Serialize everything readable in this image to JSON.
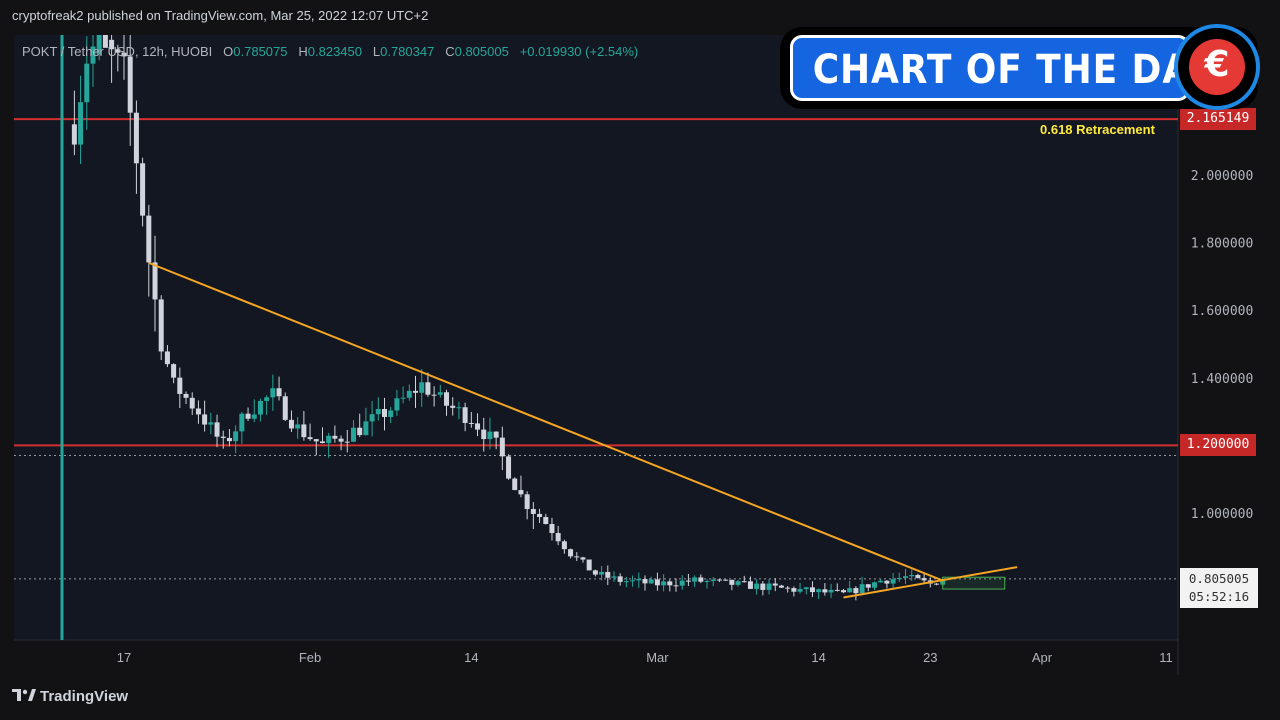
{
  "header": {
    "published": "cryptofreak2 published on TradingView.com, Mar 25, 2022 12:07 UTC+2"
  },
  "symbol": {
    "name": "POKT / Tether USD, 12h, HUOBI",
    "o_label": "O",
    "o": "0.785075",
    "h_label": "H",
    "h": "0.823450",
    "l_label": "L",
    "l": "0.780347",
    "c_label": "C",
    "c": "0.805005",
    "change": "+0.019930 (+2.54%)"
  },
  "banner": {
    "title": "CHART OF THE DAY",
    "logo_glyph": "€"
  },
  "annotations": {
    "retracement_label": "0.618 Retracement",
    "level_1": "2.165149",
    "level_2": "1.200000",
    "last_price": "0.805005",
    "countdown": "05:52:16"
  },
  "footer": {
    "brand": "TradingView"
  },
  "colors": {
    "up": "#26a69a",
    "down": "#d1d4dc",
    "level_line": "#d32f2f",
    "trendline": "#f5a623",
    "box": "#4caf50",
    "accent_banner": "#1565e0"
  },
  "chart_data": {
    "type": "candlestick",
    "symbol": "POKT / Tether USD",
    "interval": "12h",
    "exchange": "HUOBI",
    "y_ticks": [
      1.0,
      1.2,
      1.4,
      1.6,
      1.8,
      2.0
    ],
    "y_tick_labels": [
      "1.000000",
      "1.200000",
      "1.400000",
      "1.600000",
      "1.800000",
      "2.000000"
    ],
    "x_tick_labels": [
      "17",
      "Feb",
      "14",
      "Mar",
      "14",
      "23",
      "Apr",
      "11"
    ],
    "x_tick_dates": [
      "2022-01-17",
      "2022-02-01",
      "2022-02-14",
      "2022-03-01",
      "2022-03-14",
      "2022-03-23",
      "2022-04-01",
      "2022-04-11"
    ],
    "ylim": [
      0.7,
      2.35
    ],
    "horizontal_levels": [
      {
        "value": 2.165149,
        "label": "0.618 Retracement"
      },
      {
        "value": 1.2
      }
    ],
    "dotted_levels": [
      1.17,
      0.805005
    ],
    "trendlines": [
      {
        "from": [
          "2022-01-19",
          1.74
        ],
        "to": [
          "2022-03-24",
          0.8
        ]
      },
      {
        "from": [
          "2022-03-16",
          0.75
        ],
        "to": [
          "2022-03-30",
          0.84
        ]
      }
    ],
    "consolidation_box": {
      "x": [
        "2022-03-24",
        "2022-03-29"
      ],
      "y": [
        0.775,
        0.81
      ]
    },
    "approx_closes": [
      [
        "2022-01-13",
        2.15
      ],
      [
        "2022-01-14",
        2.35
      ],
      [
        "2022-01-15",
        2.4
      ],
      [
        "2022-01-16",
        2.35
      ],
      [
        "2022-01-17",
        2.3
      ],
      [
        "2022-01-18",
        2.05
      ],
      [
        "2022-01-19",
        1.75
      ],
      [
        "2022-01-20",
        1.5
      ],
      [
        "2022-01-21",
        1.38
      ],
      [
        "2022-01-23",
        1.3
      ],
      [
        "2022-01-25",
        1.2
      ],
      [
        "2022-01-27",
        1.3
      ],
      [
        "2022-01-29",
        1.35
      ],
      [
        "2022-01-31",
        1.25
      ],
      [
        "2022-02-02",
        1.2
      ],
      [
        "2022-02-05",
        1.25
      ],
      [
        "2022-02-08",
        1.32
      ],
      [
        "2022-02-10",
        1.38
      ],
      [
        "2022-02-12",
        1.32
      ],
      [
        "2022-02-14",
        1.28
      ],
      [
        "2022-02-16",
        1.2
      ],
      [
        "2022-02-18",
        1.05
      ],
      [
        "2022-02-20",
        0.97
      ],
      [
        "2022-02-22",
        0.88
      ],
      [
        "2022-02-24",
        0.82
      ],
      [
        "2022-02-26",
        0.8
      ],
      [
        "2022-03-01",
        0.79
      ],
      [
        "2022-03-04",
        0.8
      ],
      [
        "2022-03-07",
        0.79
      ],
      [
        "2022-03-10",
        0.78
      ],
      [
        "2022-03-13",
        0.77
      ],
      [
        "2022-03-16",
        0.76
      ],
      [
        "2022-03-19",
        0.8
      ],
      [
        "2022-03-21",
        0.81
      ],
      [
        "2022-03-23",
        0.79
      ],
      [
        "2022-03-24",
        0.805005
      ]
    ]
  }
}
